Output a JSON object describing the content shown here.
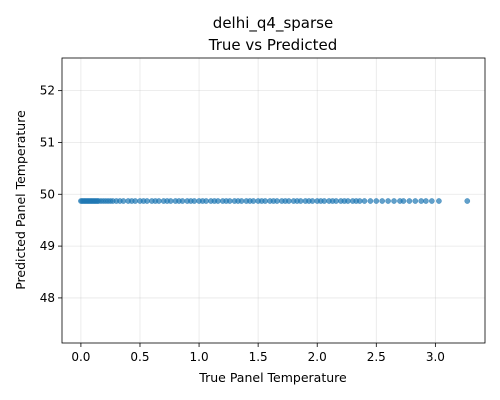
{
  "chart_data": {
    "type": "scatter",
    "title": "delhi_q4_sparse",
    "subtitle": "True vs Predicted",
    "xlabel": "True Panel Temperature",
    "ylabel": "Predicted Panel Temperature",
    "xlim": [
      -0.16,
      3.42
    ],
    "ylim": [
      47.13,
      52.63
    ],
    "xticks": [
      0.0,
      0.5,
      1.0,
      1.5,
      2.0,
      2.5,
      3.0
    ],
    "xtick_labels": [
      "0.0",
      "0.5",
      "1.0",
      "1.5",
      "2.0",
      "2.5",
      "3.0"
    ],
    "yticks": [
      48,
      49,
      50,
      51,
      52
    ],
    "ytick_labels": [
      "48",
      "49",
      "50",
      "51",
      "52"
    ],
    "grid": true,
    "point_color": "#1f77b4",
    "series": [
      {
        "x": [
          0.0,
          0.01,
          0.02,
          0.03,
          0.04,
          0.05,
          0.06,
          0.07,
          0.08,
          0.09,
          0.1,
          0.11,
          0.12,
          0.13,
          0.14,
          0.15,
          0.17,
          0.19,
          0.21,
          0.23,
          0.25,
          0.27,
          0.3,
          0.33,
          0.36,
          0.4,
          0.43,
          0.46,
          0.5,
          0.53,
          0.56,
          0.6,
          0.63,
          0.66,
          0.7,
          0.73,
          0.76,
          0.8,
          0.83,
          0.86,
          0.9,
          0.93,
          0.96,
          1.0,
          1.03,
          1.06,
          1.1,
          1.13,
          1.16,
          1.2,
          1.23,
          1.26,
          1.3,
          1.33,
          1.36,
          1.4,
          1.43,
          1.46,
          1.5,
          1.53,
          1.56,
          1.6,
          1.63,
          1.66,
          1.7,
          1.73,
          1.76,
          1.8,
          1.83,
          1.86,
          1.9,
          1.93,
          1.96,
          2.0,
          2.03,
          2.06,
          2.1,
          2.13,
          2.16,
          2.2,
          2.23,
          2.26,
          2.3,
          2.33,
          2.36,
          2.4,
          2.45,
          2.5,
          2.55,
          2.6,
          2.65,
          2.7,
          2.73,
          2.78,
          2.83,
          2.88,
          2.92,
          2.97,
          3.03,
          3.27
        ],
        "y": [
          49.87,
          49.87,
          49.87,
          49.87,
          49.87,
          49.87,
          49.87,
          49.87,
          49.87,
          49.87,
          49.87,
          49.87,
          49.87,
          49.87,
          49.87,
          49.87,
          49.87,
          49.87,
          49.87,
          49.87,
          49.87,
          49.87,
          49.87,
          49.87,
          49.87,
          49.87,
          49.87,
          49.87,
          49.87,
          49.87,
          49.87,
          49.87,
          49.87,
          49.87,
          49.87,
          49.87,
          49.87,
          49.87,
          49.87,
          49.87,
          49.87,
          49.87,
          49.87,
          49.87,
          49.87,
          49.87,
          49.87,
          49.87,
          49.87,
          49.87,
          49.87,
          49.87,
          49.87,
          49.87,
          49.87,
          49.87,
          49.87,
          49.87,
          49.87,
          49.87,
          49.87,
          49.87,
          49.87,
          49.87,
          49.87,
          49.87,
          49.87,
          49.87,
          49.87,
          49.87,
          49.87,
          49.87,
          49.87,
          49.87,
          49.87,
          49.87,
          49.87,
          49.87,
          49.87,
          49.87,
          49.87,
          49.87,
          49.87,
          49.87,
          49.87,
          49.87,
          49.87,
          49.87,
          49.87,
          49.87,
          49.87,
          49.87,
          49.87,
          49.87,
          49.87,
          49.87,
          49.87,
          49.87,
          49.87,
          49.87
        ]
      }
    ]
  }
}
